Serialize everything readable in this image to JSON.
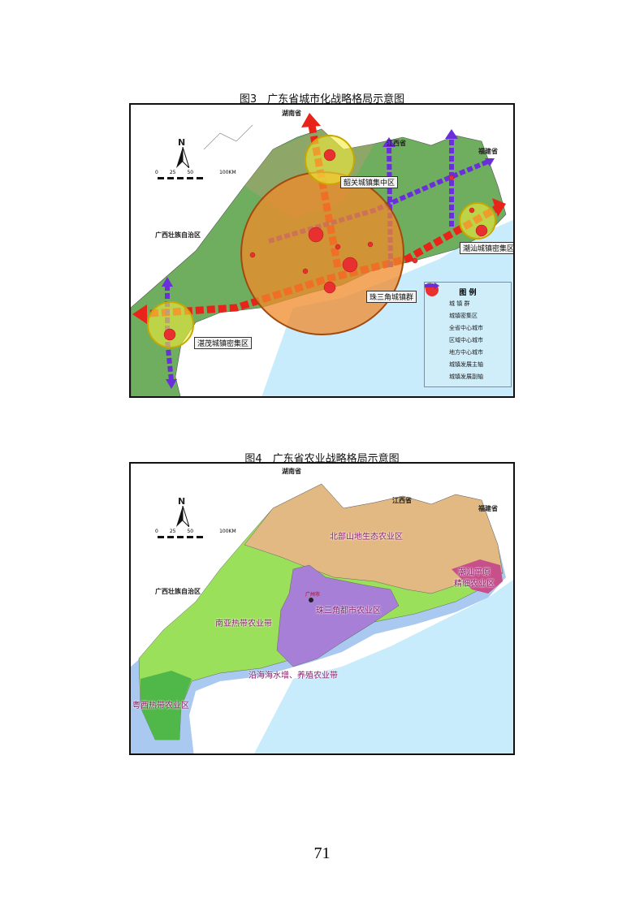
{
  "figure3": {
    "title": "图3　广东省城市化战略格局示意图",
    "neighbors": {
      "hunan": "湖南省",
      "jiangxi": "江西省",
      "fujian": "福建省",
      "guangxi": "广西壮族自治区"
    },
    "compass": "N",
    "scale": {
      "ticks": [
        "0",
        "25",
        "50",
        "100KM"
      ]
    },
    "labels": {
      "shaoguan": "韶关城镇集中区",
      "chaoshan": "潮汕城镇密集区",
      "prd": "珠三角城镇群",
      "zhanmao": "湛茂城镇密集区"
    },
    "legend": {
      "title": "图 例",
      "items": [
        "城 镇 群",
        "城镇密集区",
        "全省中心城市",
        "区域中心城市",
        "地方中心城市",
        "城镇发展主轴",
        "城镇发展副轴"
      ]
    },
    "colors": {
      "main_axis": "#e8231a",
      "sub_axis": "#6a2fd8",
      "cluster": "#f08a2a",
      "dense": "#f2ec3a"
    }
  },
  "figure4": {
    "title": "图4　广东省农业战略格局示意图",
    "neighbors": {
      "hunan": "湖南省",
      "jiangxi": "江西省",
      "fujian": "福建省",
      "guangxi": "广西壮族自治区"
    },
    "compass": "N",
    "scale": {
      "ticks": [
        "0",
        "25",
        "50",
        "100KM"
      ]
    },
    "capital": "广州市",
    "zones": {
      "north": "北部山地生态农业区",
      "chaoshan_1": "潮汕平原",
      "chaoshan_2": "精细农业区",
      "prd": "珠三角都市农业区",
      "subtropical": "南亚热带农业带",
      "coastal": "沿海海水增、养殖农业带",
      "west": "粤西热带农业区"
    },
    "colors": {
      "north": "#e2b982",
      "subtropical": "#9be05a",
      "prd": "#a77fd6",
      "chaoshan": "#c8508a",
      "west": "#4fb848",
      "coastal": "#a9c9f0",
      "sea": "#c8ecfb"
    }
  },
  "page_number": "71"
}
